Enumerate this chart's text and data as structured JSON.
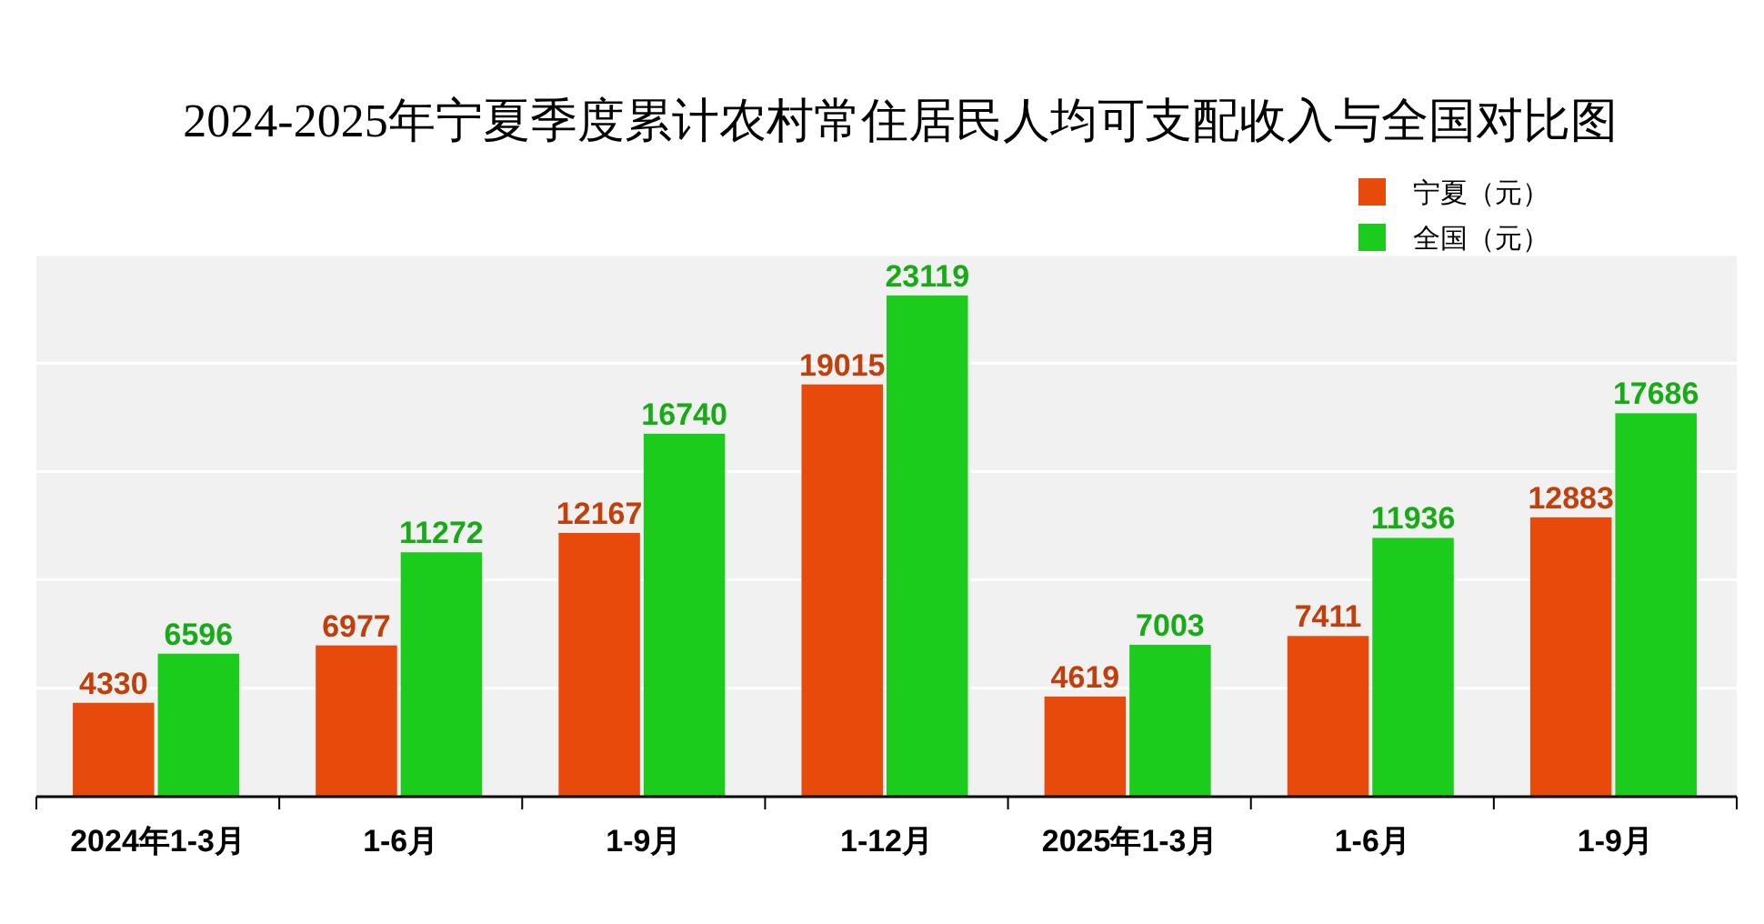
{
  "chart_data": {
    "type": "bar",
    "title": "2024-2025年宁夏季度累计农村常住居民人均可支配收入与全国对比图",
    "categories": [
      "2024年1-3月",
      "1-6月",
      "1-9月",
      "1-12月",
      "2025年1-3月",
      "1-6月",
      "1-9月"
    ],
    "series": [
      {
        "name": "宁夏（元）",
        "color": "#e84a0c",
        "values": [
          4330,
          6977,
          12167,
          19015,
          4619,
          7411,
          12883
        ]
      },
      {
        "name": "全国（元）",
        "color": "#1ccc1c",
        "values": [
          6596,
          11272,
          16740,
          23119,
          7003,
          11936,
          17686
        ]
      }
    ],
    "ylim": [
      0,
      25000
    ],
    "yticks": [
      {
        "value": 0,
        "label": null
      },
      {
        "value": 5000,
        "label": null
      },
      {
        "value": 10000,
        "label": null
      },
      {
        "value": 15000,
        "label": null
      },
      {
        "value": 20000,
        "label": null
      },
      {
        "value": 25000,
        "label": null
      }
    ],
    "tick_labels": "x",
    "grid": "y",
    "legend": "top right",
    "data_labels": true
  }
}
